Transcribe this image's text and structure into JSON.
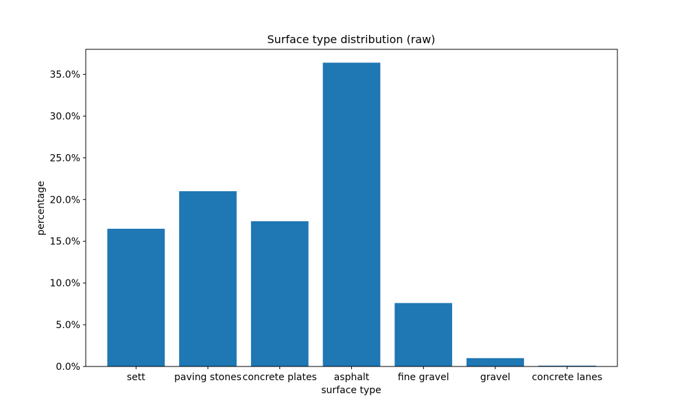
{
  "chart_data": {
    "type": "bar",
    "title": "Surface type distribution (raw)",
    "xlabel": "surface type",
    "ylabel": "percentage",
    "categories": [
      "sett",
      "paving stones",
      "concrete plates",
      "asphalt",
      "fine gravel",
      "gravel",
      "concrete lanes"
    ],
    "values": [
      16.5,
      21.0,
      17.4,
      36.4,
      7.6,
      1.0,
      0.1
    ],
    "ylim": [
      0,
      38
    ],
    "yticks": [
      0,
      5,
      10,
      15,
      20,
      25,
      30,
      35
    ],
    "ytick_labels": [
      "0.0%",
      "5.0%",
      "10.0%",
      "15.0%",
      "20.0%",
      "25.0%",
      "30.0%",
      "35.0%"
    ],
    "grid": false,
    "bar_color": "#1f77b4"
  }
}
